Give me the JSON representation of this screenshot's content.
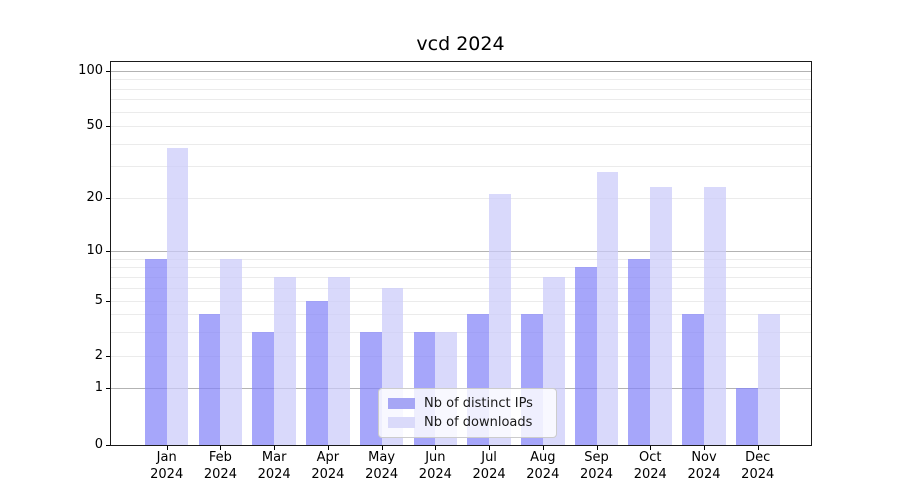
{
  "chart_data": {
    "type": "bar",
    "title": "vcd 2024",
    "categories": [
      "Jan 2024",
      "Feb 2024",
      "Mar 2024",
      "Apr 2024",
      "May 2024",
      "Jun 2024",
      "Jul 2024",
      "Aug 2024",
      "Sep 2024",
      "Oct 2024",
      "Nov 2024",
      "Dec 2024"
    ],
    "series": [
      {
        "name": "Nb of distinct IPs",
        "color": "rgba(131,131,248,0.72)",
        "legend_color": "#a6a6f5",
        "values": [
          9,
          4,
          3,
          5,
          3,
          3,
          4,
          4,
          8,
          9,
          4,
          1
        ]
      },
      {
        "name": "Nb of downloads",
        "color": "rgba(203,203,249,0.72)",
        "legend_color": "#dadafa",
        "values": [
          38,
          9,
          7,
          7,
          6,
          3,
          21,
          7,
          28,
          23,
          23,
          4
        ]
      }
    ],
    "xlabel": "",
    "ylabel": "",
    "y_axis": {
      "tick_labels": [
        "100",
        "50",
        "20",
        "10",
        "5",
        "2",
        "1",
        "0"
      ],
      "tick_values": [
        100,
        50,
        20,
        10,
        5,
        2,
        1,
        0
      ],
      "scale": "log-like",
      "range": [
        0,
        100
      ]
    },
    "grid": {
      "on": true,
      "major_lines": [
        100,
        10,
        1
      ],
      "minor_lines": [
        2,
        3,
        4,
        5,
        6,
        7,
        8,
        9,
        20,
        30,
        40,
        50,
        60,
        70,
        80,
        90
      ]
    },
    "legend": {
      "position": "lower-center"
    }
  }
}
